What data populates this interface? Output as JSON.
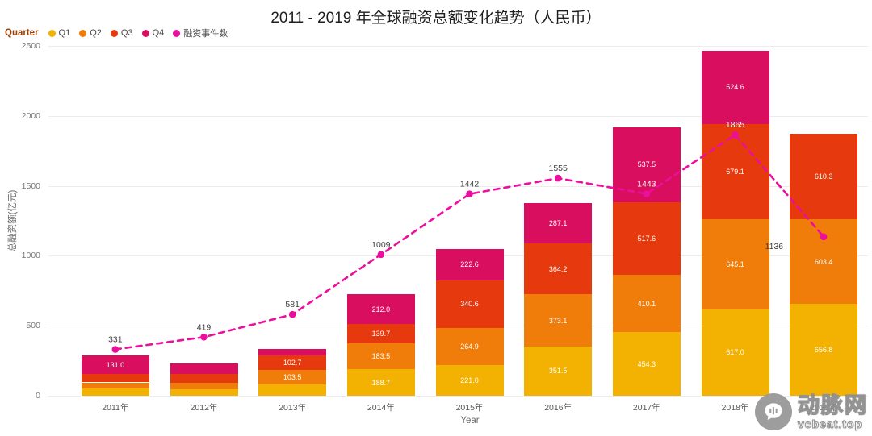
{
  "title": "2011 - 2019 年全球融资总额变化趋势（人民币）",
  "legend": {
    "title": "Quarter",
    "items": [
      {
        "label": "Q1",
        "color": "#F3B201"
      },
      {
        "label": "Q2",
        "color": "#F07C0A"
      },
      {
        "label": "Q3",
        "color": "#E63A0E"
      },
      {
        "label": "Q4",
        "color": "#DA0E5F"
      },
      {
        "label": "融资事件数",
        "color": "#EC0E9C"
      }
    ]
  },
  "axes": {
    "y_title": "总融资额(亿元)",
    "x_title": "Year",
    "y_ticks": [
      0,
      500,
      1000,
      1500,
      2000,
      2500
    ],
    "y_max": 2500
  },
  "watermark": {
    "name": "动脉网",
    "domain": "vcbeat.top"
  },
  "chart_data": {
    "type": "bar",
    "subtype": "stacked-bar-with-line-overlay",
    "title": "2011 - 2019 年全球融资总额变化趋势（人民币）",
    "xlabel": "Year",
    "ylabel": "总融资额(亿元)",
    "ylim": [
      0,
      2500
    ],
    "grid": true,
    "legend_position": "top-left",
    "categories": [
      "2011年",
      "2012年",
      "2013年",
      "2014年",
      "2015年",
      "2016年",
      "2017年",
      "2018年",
      "2019年"
    ],
    "series": [
      {
        "name": "Q1",
        "color": "#F3B201",
        "values": [
          50.0,
          45.0,
          82.0,
          188.7,
          221.0,
          351.5,
          454.3,
          617.0,
          656.8
        ]
      },
      {
        "name": "Q2",
        "color": "#F07C0A",
        "values": [
          45.0,
          48.0,
          103.5,
          183.5,
          264.9,
          373.1,
          410.1,
          645.1,
          603.4
        ]
      },
      {
        "name": "Q3",
        "color": "#E63A0E",
        "values": [
          60.0,
          62.0,
          102.7,
          139.7,
          340.6,
          364.2,
          517.6,
          679.1,
          610.3
        ]
      },
      {
        "name": "Q4",
        "color": "#DA0E5F",
        "values": [
          131.0,
          75.0,
          46.0,
          212.0,
          222.6,
          287.1,
          537.5,
          524.6,
          0
        ]
      }
    ],
    "line": {
      "name": "融资事件数",
      "color": "#EC0E9C",
      "values": [
        331,
        419,
        581,
        1009,
        1442,
        1555,
        1443,
        1865,
        1136
      ]
    }
  }
}
